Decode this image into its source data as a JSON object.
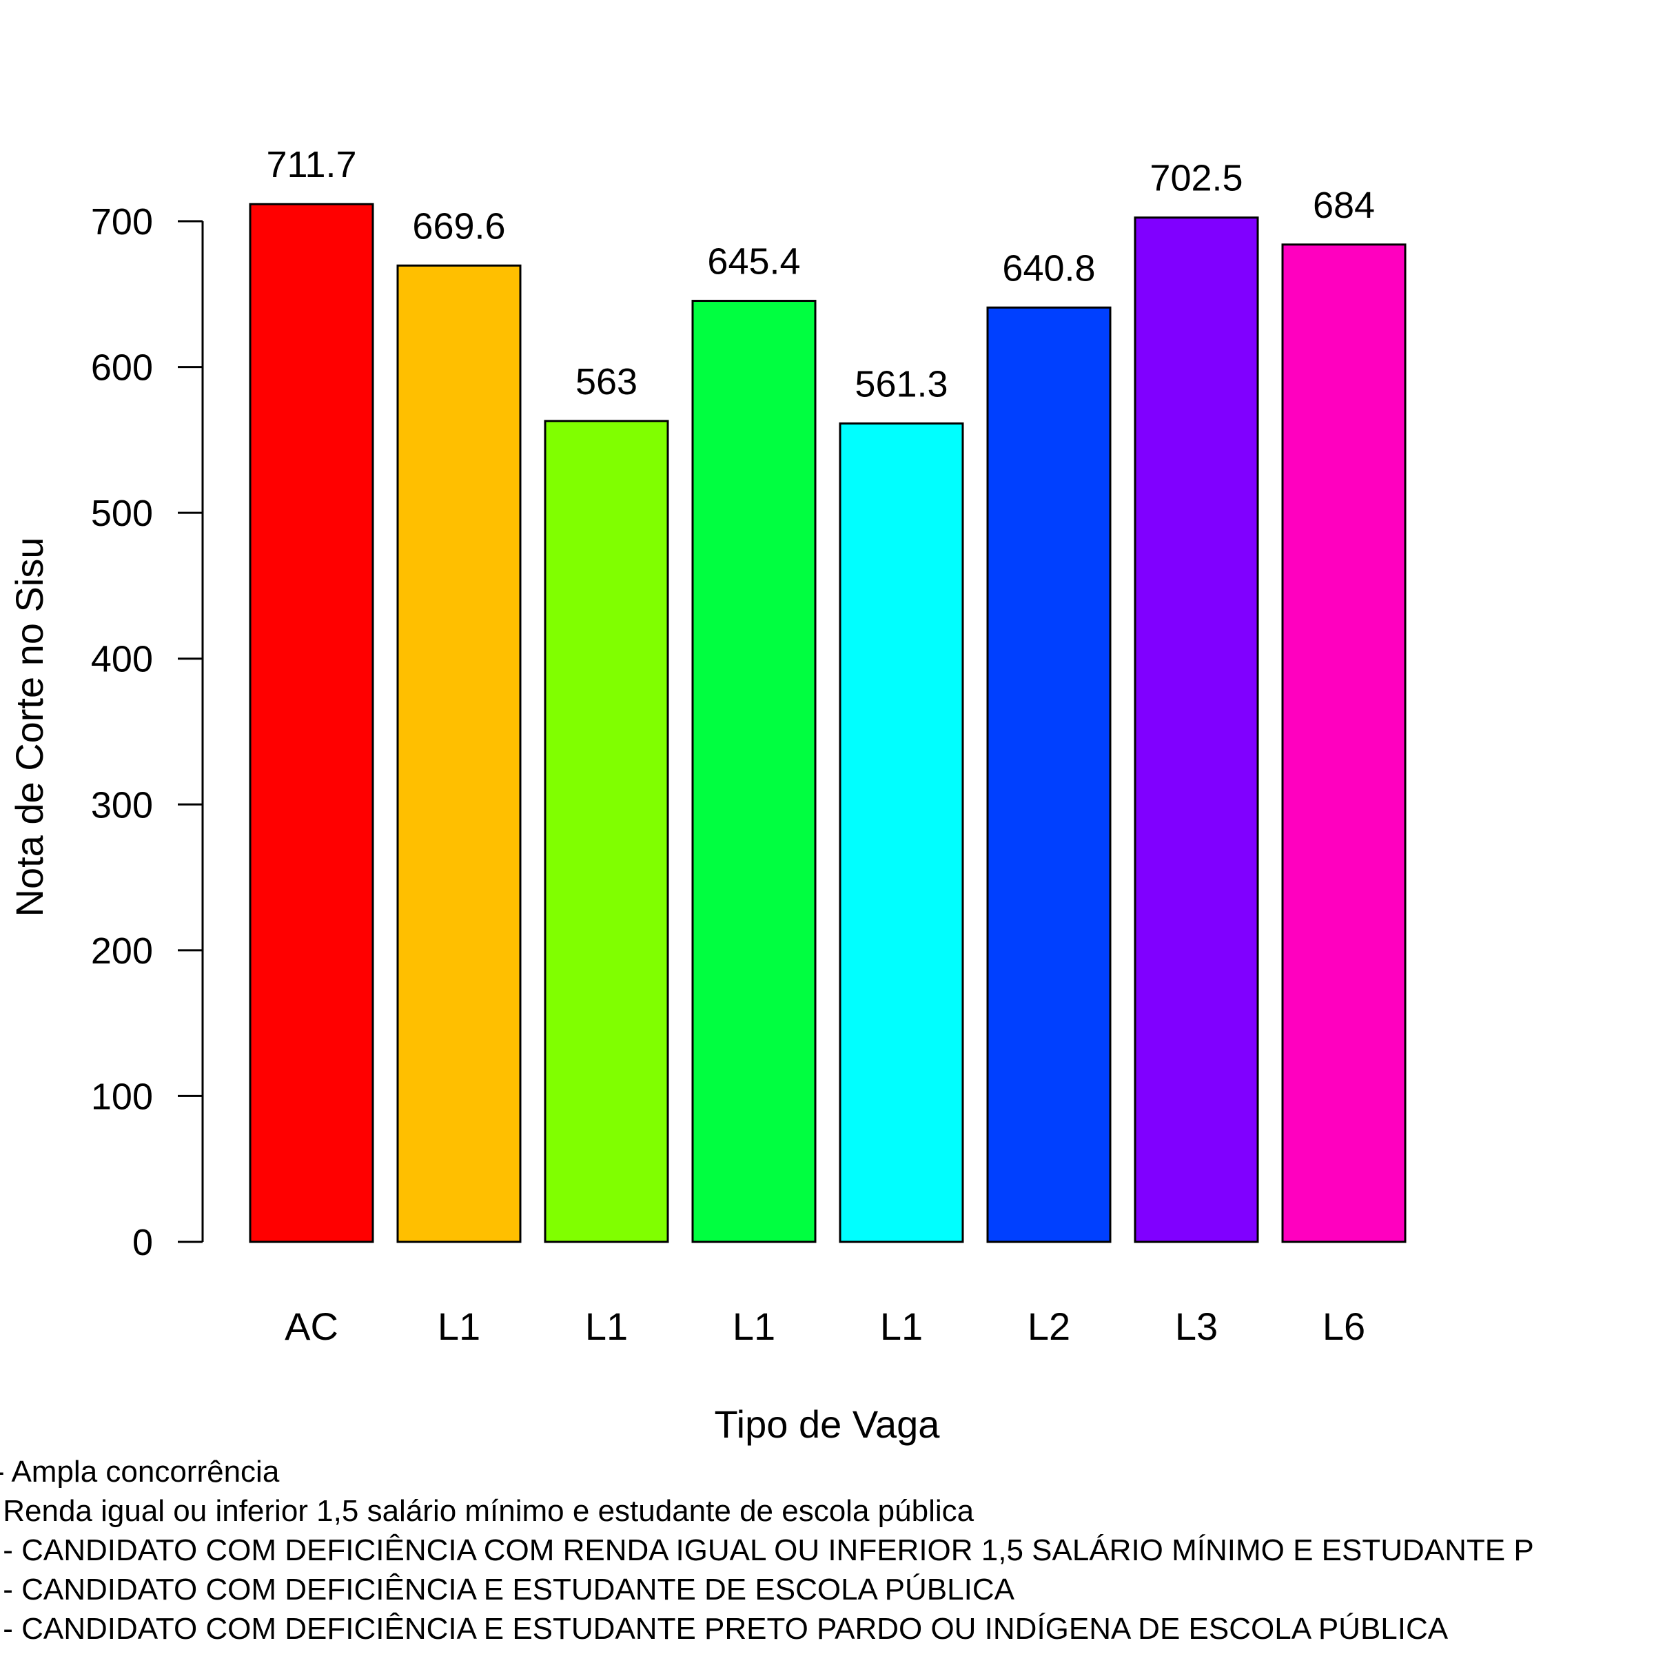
{
  "chart_data": {
    "type": "bar",
    "categories": [
      "AC",
      "L1",
      "L1",
      "L1",
      "L1",
      "L2",
      "L3",
      "L6"
    ],
    "values": [
      711.7,
      669.6,
      563,
      645.4,
      561.3,
      640.8,
      702.5,
      684
    ],
    "value_labels": [
      "711.7",
      "669.6",
      "563",
      "645.4",
      "561.3",
      "640.8",
      "702.5",
      "684"
    ],
    "colors": [
      "#FF0000",
      "#FFBF00",
      "#80FF00",
      "#00FF40",
      "#00FFFF",
      "#0040FF",
      "#8000FF",
      "#FF00BF"
    ],
    "xlabel": "Tipo de Vaga",
    "ylabel": "Nota de Corte no Sisu",
    "ylim": [
      0,
      700
    ],
    "yticks": [
      0,
      100,
      200,
      300,
      400,
      500,
      600,
      700
    ],
    "grid": false,
    "legend_notes": [
      "- Ampla concorrência",
      " Renda igual ou inferior 1,5 salário mínimo e estudante de escola pública",
      " - CANDIDATO COM DEFICIÊNCIA COM RENDA IGUAL OU INFERIOR 1,5 SALÁRIO MÍNIMO E ESTUDANTE P",
      " - CANDIDATO COM DEFICIÊNCIA E ESTUDANTE DE ESCOLA PÚBLICA",
      " - CANDIDATO COM DEFICIÊNCIA E ESTUDANTE PRETO PARDO OU INDÍGENA DE ESCOLA PÚBLICA"
    ]
  }
}
